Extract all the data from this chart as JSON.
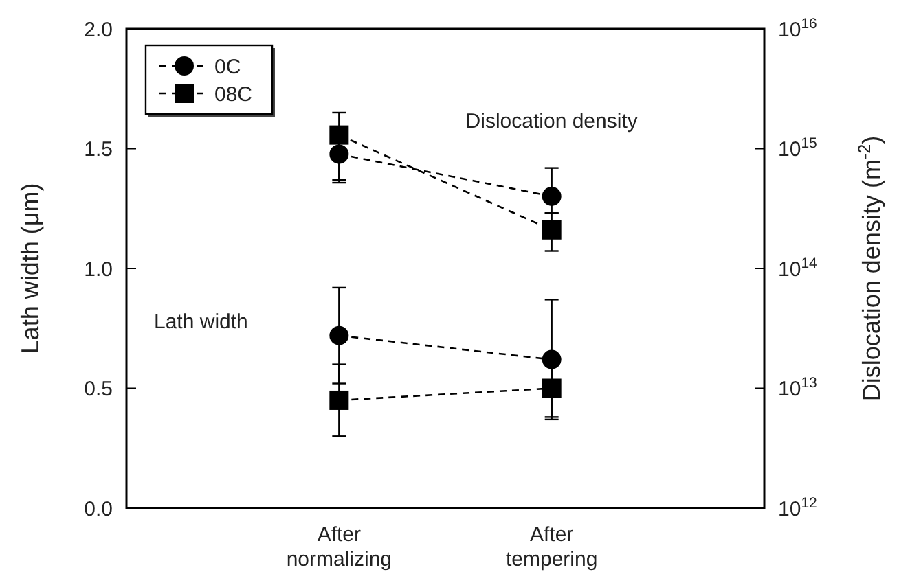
{
  "chart_data": {
    "type": "line",
    "categories": [
      "After\nnormalizing",
      "After\ntempering"
    ],
    "ylabel": "Lath width (μm)",
    "y2label": "Dislocation density (m$^{-2}$)",
    "ylim": [
      0,
      2
    ],
    "yticks": [
      {
        "value": 0,
        "label": "0.0"
      },
      0.5,
      {
        "value": 1,
        "label": "1.0"
      },
      1.5,
      {
        "value": 2,
        "label": "2.0"
      }
    ],
    "y2lim": [
      1000000000000.0,
      1e+16
    ],
    "y2ticks": [
      {
        "value": 1000000000000.0,
        "label": "10$^{12}$"
      },
      {
        "value": 10000000000000.0,
        "label": "10$^{13}$"
      },
      {
        "value": 100000000000000.0,
        "label": "10$^{14}$"
      },
      {
        "value": 1000000000000000.0,
        "label": "10$^{15}$"
      },
      {
        "value": 1e+16,
        "label": "10$^{16}$"
      }
    ],
    "log": "y2",
    "grid": false,
    "legend": "top left",
    "line_style": "dashed",
    "annotations": [
      "Dislocation density",
      "Lath width"
    ],
    "series": [
      {
        "name": "0C",
        "color": "#000000",
        "marker": "circle",
        "values": [
          0.72,
          0.62
        ],
        "errors": [
          0.2,
          0.25
        ]
      },
      {
        "name": "08C",
        "color": "#000000",
        "marker": "square",
        "values": [
          0.45,
          0.5
        ],
        "errors": [
          0.15,
          0.12
        ]
      },
      {
        "color": "#000000",
        "marker": "circle",
        "axis": "y2",
        "values": [
          900000000000000.0,
          400000000000000.0
        ],
        "errors": [
          [
            550000000000000.0,
            1500000000000000.0
          ],
          [
            290000000000000.0,
            690000000000000.0
          ]
        ]
      },
      {
        "color": "#000000",
        "marker": "square",
        "axis": "y2",
        "values": [
          1300000000000000.0,
          210000000000000.0
        ],
        "errors": [
          [
            520000000000000.0,
            2000000000000000.0
          ],
          [
            140000000000000.0,
            290000000000000.0
          ]
        ]
      }
    ]
  }
}
